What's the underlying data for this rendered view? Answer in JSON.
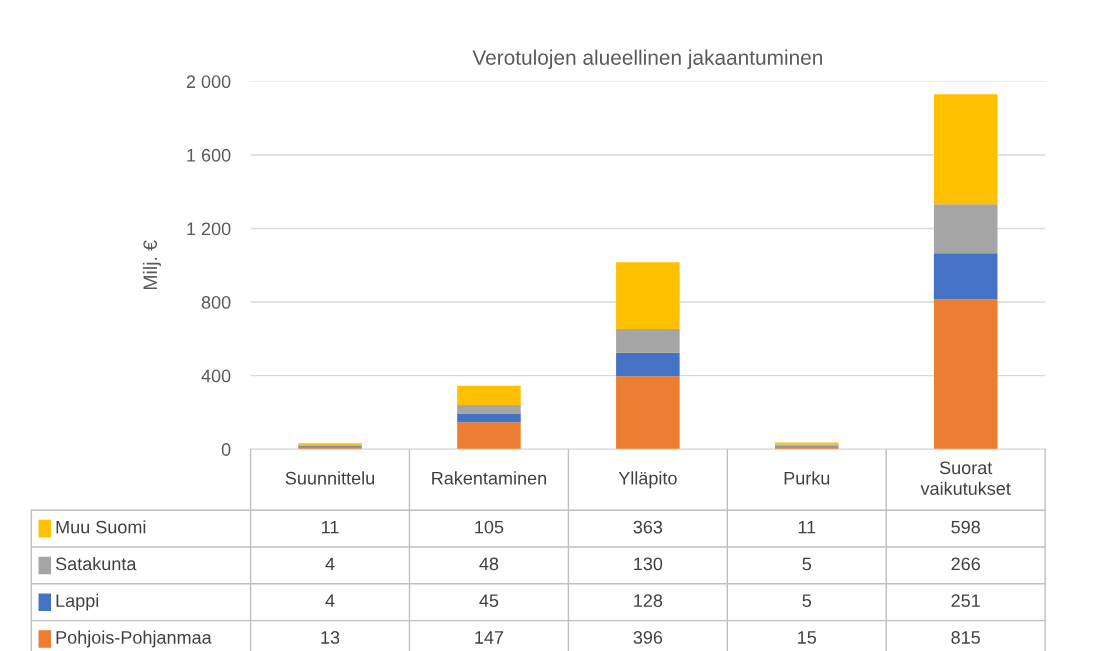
{
  "chart_data": {
    "type": "bar",
    "title": "Verotulojen alueellinen jakaantuminen",
    "ylabel": "Milj. €",
    "categories": [
      "Suunnittelu",
      "Rakentaminen",
      "Ylläpito",
      "Purku",
      "Suorat vaikutukset"
    ],
    "stacked": true,
    "data_labels": true,
    "legend": "bottom",
    "grid": "y",
    "ylim": [
      0,
      2000
    ],
    "yticks": [
      0,
      400,
      800,
      {
        "value": 1200,
        "label": "1 200"
      },
      {
        "value": 1600,
        "label": "1 600"
      },
      {
        "value": 2000,
        "label": "2 000"
      }
    ],
    "series": [
      {
        "name": "Pohjois-Pohjanmaa",
        "color": "#ed7d31",
        "values": [
          13,
          147,
          396,
          15,
          815
        ]
      },
      {
        "name": "Lappi",
        "color": "#4472c4",
        "values": [
          4,
          45,
          128,
          5,
          251
        ]
      },
      {
        "name": "Satakunta",
        "color": "#a5a5a5",
        "values": [
          4,
          48,
          130,
          5,
          266
        ]
      },
      {
        "name": "Muu Suomi",
        "color": "#ffc000",
        "values": [
          11,
          105,
          363,
          11,
          598
        ]
      }
    ]
  }
}
